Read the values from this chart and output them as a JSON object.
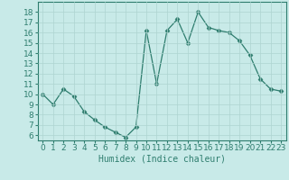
{
  "x": [
    0,
    1,
    2,
    3,
    4,
    5,
    6,
    7,
    8,
    9,
    10,
    11,
    12,
    13,
    14,
    15,
    16,
    17,
    18,
    19,
    20,
    21,
    22,
    23
  ],
  "y": [
    10,
    9,
    10.5,
    9.8,
    8.3,
    7.5,
    6.8,
    6.3,
    5.8,
    6.8,
    16.2,
    11,
    16.2,
    17.3,
    15,
    18,
    16.5,
    16.2,
    16,
    15.2,
    13.8,
    11.5,
    10.5,
    10.3
  ],
  "line_color": "#2e7d6e",
  "marker": "D",
  "marker_size": 2.5,
  "bg_color": "#c8eae8",
  "grid_color": "#aed4d0",
  "xlabel": "Humidex (Indice chaleur)",
  "xlabel_fontsize": 7,
  "tick_fontsize": 6.5,
  "ylim": [
    5.5,
    19
  ],
  "xlim": [
    -0.5,
    23.5
  ],
  "yticks": [
    6,
    7,
    8,
    9,
    10,
    11,
    12,
    13,
    14,
    15,
    16,
    17,
    18
  ],
  "xticks": [
    0,
    1,
    2,
    3,
    4,
    5,
    6,
    7,
    8,
    9,
    10,
    11,
    12,
    13,
    14,
    15,
    16,
    17,
    18,
    19,
    20,
    21,
    22,
    23
  ]
}
